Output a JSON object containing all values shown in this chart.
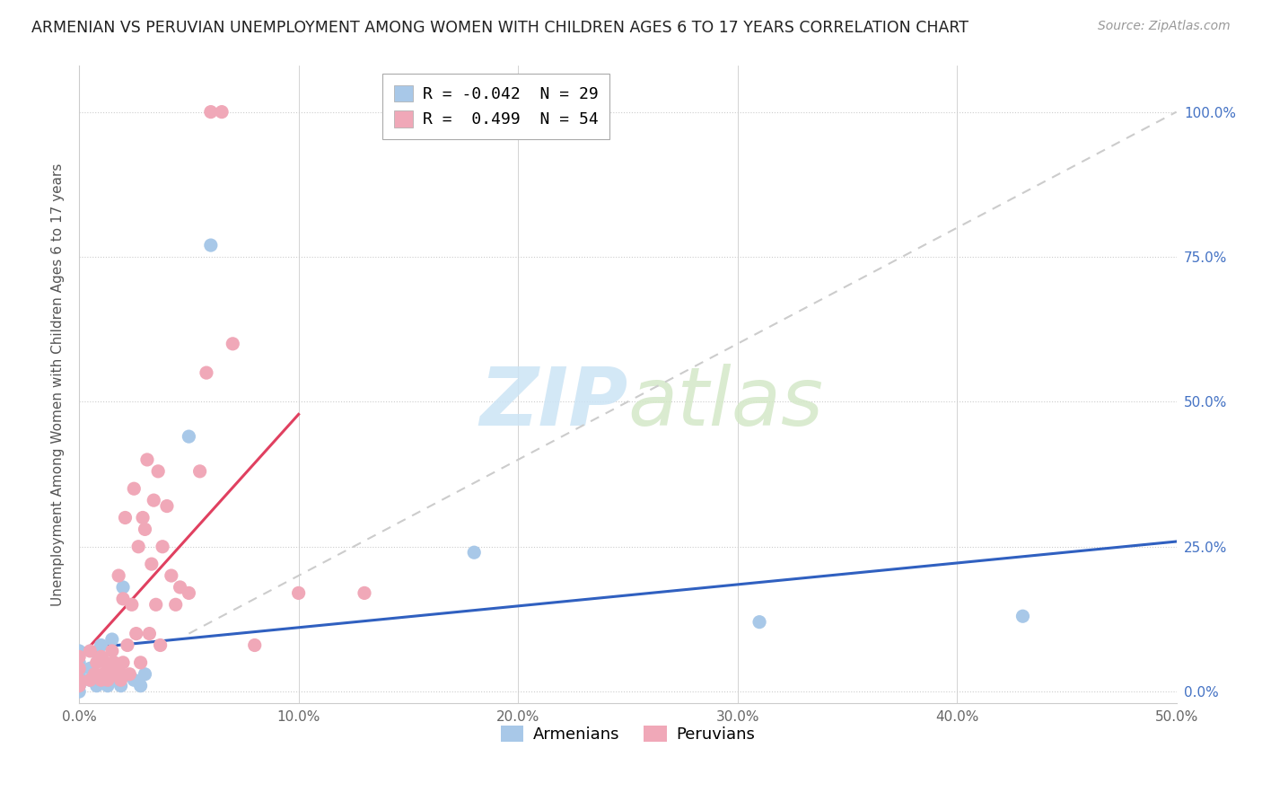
{
  "title": "ARMENIAN VS PERUVIAN UNEMPLOYMENT AMONG WOMEN WITH CHILDREN AGES 6 TO 17 YEARS CORRELATION CHART",
  "source": "Source: ZipAtlas.com",
  "ylabel": "Unemployment Among Women with Children Ages 6 to 17 years",
  "xlim": [
    0.0,
    0.5
  ],
  "ylim": [
    -0.02,
    1.08
  ],
  "xticks": [
    0.0,
    0.1,
    0.2,
    0.3,
    0.4,
    0.5
  ],
  "xticklabels": [
    "0.0%",
    "10.0%",
    "20.0%",
    "30.0%",
    "40.0%",
    "50.0%"
  ],
  "yticks": [
    0.0,
    0.25,
    0.5,
    0.75,
    1.0
  ],
  "yticklabels_right": [
    "0.0%",
    "25.0%",
    "50.0%",
    "75.0%",
    "100.0%"
  ],
  "armenian_color": "#a8c8e8",
  "peruvian_color": "#f0a8b8",
  "armenian_line_color": "#3060c0",
  "peruvian_line_color": "#e04060",
  "diagonal_color": "#cccccc",
  "legend_armenian_label": "R = -0.042  N = 29",
  "legend_peruvian_label": "R =  0.499  N = 54",
  "armenian_x": [
    0.0,
    0.0,
    0.0,
    0.0,
    0.0,
    0.0,
    0.005,
    0.005,
    0.007,
    0.008,
    0.009,
    0.01,
    0.01,
    0.012,
    0.013,
    0.015,
    0.015,
    0.016,
    0.018,
    0.019,
    0.02,
    0.025,
    0.028,
    0.03,
    0.05,
    0.06,
    0.18,
    0.31,
    0.43
  ],
  "armenian_y": [
    0.0,
    0.01,
    0.02,
    0.03,
    0.05,
    0.07,
    0.02,
    0.04,
    0.03,
    0.01,
    0.06,
    0.02,
    0.08,
    0.03,
    0.01,
    0.04,
    0.09,
    0.02,
    0.03,
    0.01,
    0.18,
    0.02,
    0.01,
    0.03,
    0.44,
    0.77,
    0.24,
    0.12,
    0.13
  ],
  "peruvian_x": [
    0.0,
    0.0,
    0.0,
    0.0,
    0.005,
    0.005,
    0.007,
    0.008,
    0.01,
    0.01,
    0.011,
    0.012,
    0.013,
    0.014,
    0.015,
    0.015,
    0.016,
    0.017,
    0.018,
    0.018,
    0.019,
    0.02,
    0.02,
    0.021,
    0.022,
    0.023,
    0.024,
    0.025,
    0.026,
    0.027,
    0.028,
    0.029,
    0.03,
    0.031,
    0.032,
    0.033,
    0.034,
    0.035,
    0.036,
    0.037,
    0.038,
    0.04,
    0.042,
    0.044,
    0.046,
    0.05,
    0.055,
    0.058,
    0.06,
    0.065,
    0.07,
    0.08,
    0.1,
    0.13
  ],
  "peruvian_y": [
    0.01,
    0.02,
    0.04,
    0.06,
    0.02,
    0.07,
    0.03,
    0.05,
    0.02,
    0.06,
    0.03,
    0.05,
    0.02,
    0.04,
    0.03,
    0.07,
    0.05,
    0.03,
    0.04,
    0.2,
    0.02,
    0.05,
    0.16,
    0.3,
    0.08,
    0.03,
    0.15,
    0.35,
    0.1,
    0.25,
    0.05,
    0.3,
    0.28,
    0.4,
    0.1,
    0.22,
    0.33,
    0.15,
    0.38,
    0.08,
    0.25,
    0.32,
    0.2,
    0.15,
    0.18,
    0.17,
    0.38,
    0.55,
    1.0,
    1.0,
    0.6,
    0.08,
    0.17,
    0.17
  ]
}
